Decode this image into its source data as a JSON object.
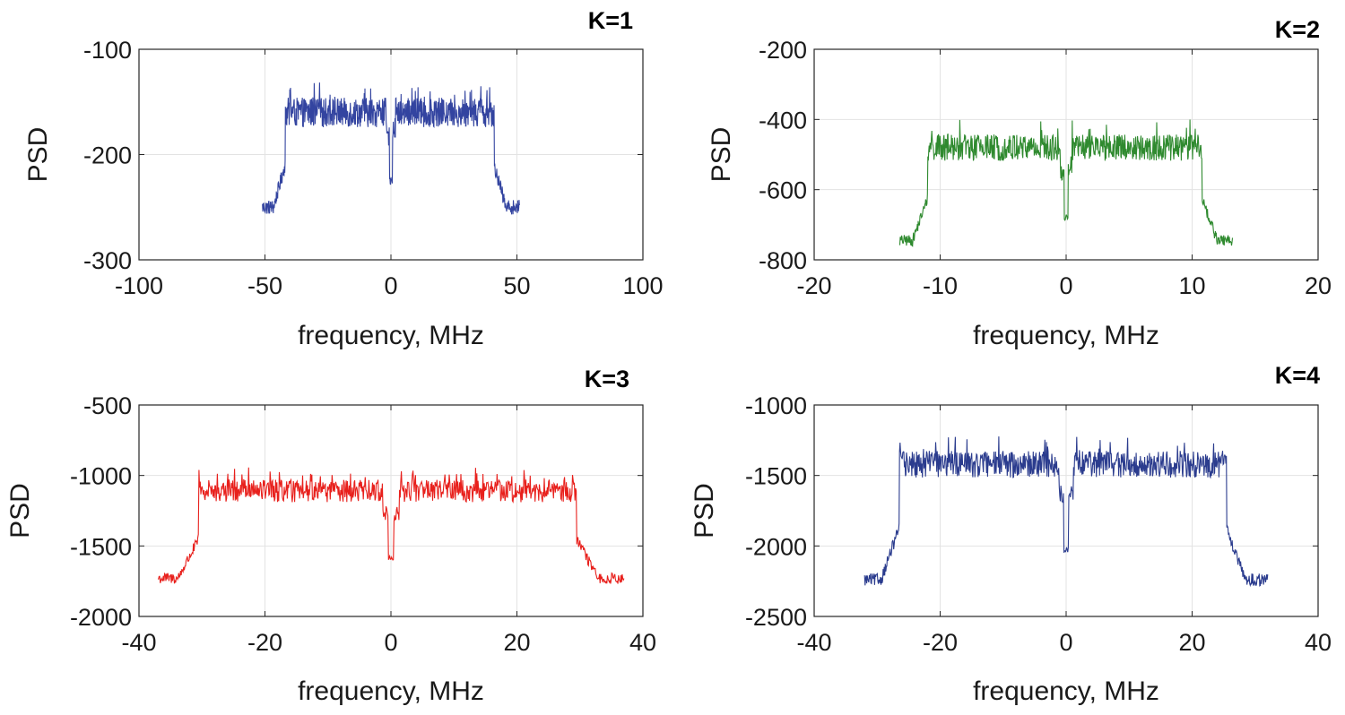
{
  "figure": {
    "background": "#ffffff"
  },
  "chart_data": [
    {
      "type": "line",
      "title": "K=1",
      "xlabel": "frequency, MHz",
      "ylabel": "PSD",
      "xlim": [
        -100,
        100
      ],
      "ylim": [
        -300,
        -100
      ],
      "xticks": [
        -100,
        -50,
        0,
        50,
        100
      ],
      "yticks": [
        -100,
        -200,
        -300
      ],
      "xtick_labels": [
        "-100",
        "-50",
        "0",
        "50",
        "100"
      ],
      "ytick_labels": [
        "-100",
        "-200",
        "-300"
      ],
      "grid": true,
      "color": "#3344a0",
      "series": [
        {
          "name": "PSD",
          "x_range": [
            -51,
            51
          ],
          "passband": [
            -42,
            41
          ],
          "plateau_mean": -160,
          "plateau_spread": 14,
          "edge_level": -250,
          "edge_spread": 7,
          "center_notch": -225
        }
      ]
    },
    {
      "type": "line",
      "title": "K=2",
      "xlabel": "frequency, MHz",
      "ylabel": "PSD",
      "xlim": [
        -20,
        20
      ],
      "ylim": [
        -800,
        -200
      ],
      "xticks": [
        -20,
        -10,
        0,
        10,
        20
      ],
      "yticks": [
        -200,
        -400,
        -600,
        -800
      ],
      "xtick_labels": [
        "-20",
        "-10",
        "0",
        "10",
        "20"
      ],
      "ytick_labels": [
        "-200",
        "-400",
        "-600",
        "-800"
      ],
      "grid": true,
      "color": "#2f8a2f",
      "series": [
        {
          "name": "PSD",
          "x_range": [
            -13.2,
            13.2
          ],
          "passband": [
            -11,
            10.8
          ],
          "plateau_mean": -480,
          "plateau_spread": 38,
          "edge_level": -745,
          "edge_spread": 16,
          "center_notch": -680
        }
      ]
    },
    {
      "type": "line",
      "title": "K=3",
      "xlabel": "frequency, MHz",
      "ylabel": "PSD",
      "xlim": [
        -40,
        40
      ],
      "ylim": [
        -2000,
        -500
      ],
      "xticks": [
        -40,
        -20,
        0,
        20,
        40
      ],
      "yticks": [
        -500,
        -1000,
        -1500,
        -2000
      ],
      "xtick_labels": [
        "-40",
        "-20",
        "0",
        "20",
        "40"
      ],
      "ytick_labels": [
        "-500",
        "-1000",
        "-1500",
        "-2000"
      ],
      "grid": true,
      "color": "#e8201c",
      "series": [
        {
          "name": "PSD",
          "x_range": [
            -37,
            37
          ],
          "passband": [
            -30.5,
            29.5
          ],
          "plateau_mean": -1110,
          "plateau_spread": 80,
          "edge_level": -1730,
          "edge_spread": 40,
          "center_notch": -1580
        }
      ]
    },
    {
      "type": "line",
      "title": "K=4",
      "xlabel": "frequency, MHz",
      "ylabel": "PSD",
      "xlim": [
        -40,
        40
      ],
      "ylim": [
        -2500,
        -1000
      ],
      "xticks": [
        -40,
        -20,
        0,
        20,
        40
      ],
      "yticks": [
        -1000,
        -1500,
        -2000,
        -2500
      ],
      "xtick_labels": [
        "-40",
        "-20",
        "0",
        "20",
        "40"
      ],
      "ytick_labels": [
        "-1000",
        "-1500",
        "-2000",
        "-2500"
      ],
      "grid": true,
      "color": "#2b3c8e",
      "series": [
        {
          "name": "PSD",
          "x_range": [
            -32,
            32
          ],
          "passband": [
            -26.5,
            25.5
          ],
          "plateau_mean": -1420,
          "plateau_spread": 95,
          "edge_level": -2240,
          "edge_spread": 45,
          "center_notch": -2030
        }
      ]
    }
  ]
}
